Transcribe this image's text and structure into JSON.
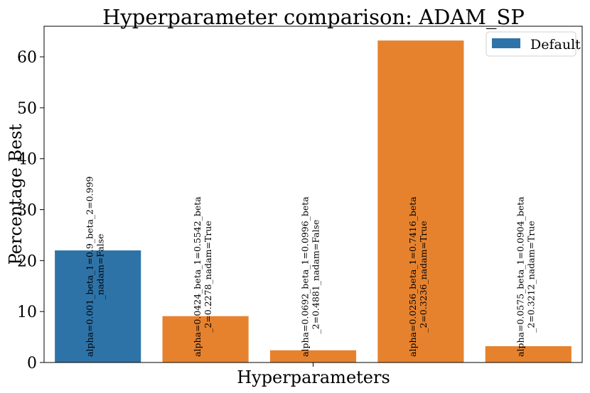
{
  "chart_data": {
    "type": "bar",
    "title": "Hyperparameter comparison: ADAM_SP",
    "xlabel": "Hyperparameters",
    "ylabel": "Percentage Best",
    "ylim": [
      0,
      66
    ],
    "yticks": [
      0,
      10,
      20,
      30,
      40,
      50,
      60
    ],
    "grid": false,
    "legend": {
      "placement": "top-right",
      "entries": [
        {
          "label": "Default",
          "color": "#2e73a8"
        }
      ]
    },
    "categories": [
      [
        "alpha=0.001_beta_1=0.9_beta_2=0.999",
        "_nadam=False"
      ],
      [
        "alpha=0.0424_beta_1=0.5542_beta",
        "_2=0.2278_nadam=True"
      ],
      [
        "alpha=0.0692_beta_1=0.0996_beta",
        "_2=0.4881_nadam=False"
      ],
      [
        "alpha=0.0256_beta_1=0.7416_beta",
        "_2=0.3236_nadam=True"
      ],
      [
        "alpha=0.0575_beta_1=0.0904_beta",
        "_2=0.3212_nadam=True"
      ]
    ],
    "values": [
      22.0,
      9.1,
      2.4,
      63.2,
      3.2
    ],
    "colors": [
      "#2e73a8",
      "#e6822e",
      "#e6822e",
      "#e6822e",
      "#e6822e"
    ]
  }
}
